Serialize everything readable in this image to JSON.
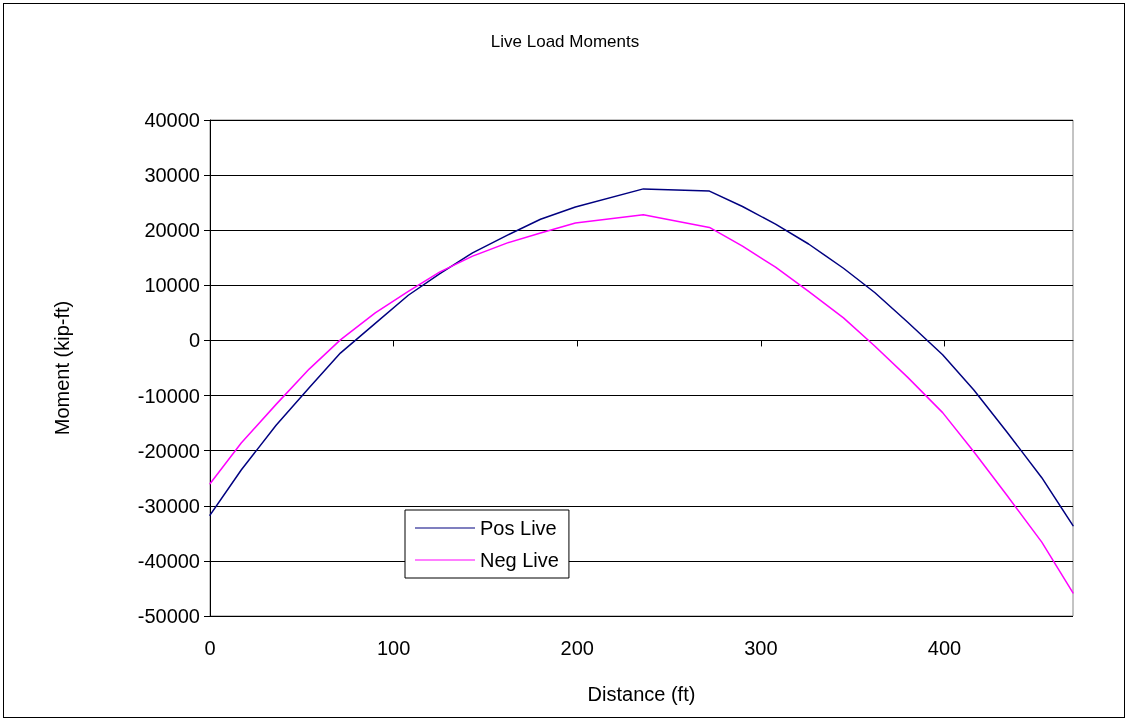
{
  "chart_data": {
    "type": "line",
    "title": "Live Load Moments",
    "xlabel": "Distance (ft)",
    "ylabel": "Moment (kip-ft)",
    "xlim": [
      0,
      470
    ],
    "xticks": [
      0,
      100,
      200,
      300,
      400
    ],
    "ylim": [
      -50000,
      40000
    ],
    "yticks": [
      -50000,
      -40000,
      -30000,
      -20000,
      -10000,
      0,
      10000,
      20000,
      30000,
      40000
    ],
    "grid": "y",
    "legend": "bottom left",
    "marker": "none",
    "line_style": "solid",
    "series": [
      {
        "name": "Pos Live",
        "color": "#000080",
        "x": [
          0,
          17,
          36,
          54,
          71,
          90,
          108,
          125,
          143,
          162,
          180,
          199,
          236,
          272,
          290,
          308,
          326,
          345,
          362,
          380,
          399,
          416,
          434,
          453,
          470
        ],
        "values": [
          -31700,
          -23500,
          -15400,
          -8600,
          -2300,
          3100,
          8200,
          12100,
          15900,
          19100,
          22000,
          24200,
          27500,
          27100,
          24300,
          21100,
          17500,
          13100,
          8700,
          3300,
          -2600,
          -9000,
          -16600,
          -24900,
          -33600
        ]
      },
      {
        "name": "Neg Live",
        "color": "#ff00ff",
        "x": [
          0,
          17,
          36,
          54,
          71,
          90,
          108,
          125,
          143,
          162,
          180,
          199,
          236,
          272,
          290,
          308,
          326,
          345,
          362,
          380,
          399,
          416,
          434,
          453,
          470
        ],
        "values": [
          -26000,
          -18600,
          -11600,
          -5200,
          100,
          5000,
          8900,
          12400,
          15300,
          17700,
          19500,
          21300,
          22800,
          20500,
          17100,
          13300,
          8900,
          4100,
          -1000,
          -6700,
          -13100,
          -20200,
          -28100,
          -36600,
          -45800
        ]
      }
    ]
  }
}
